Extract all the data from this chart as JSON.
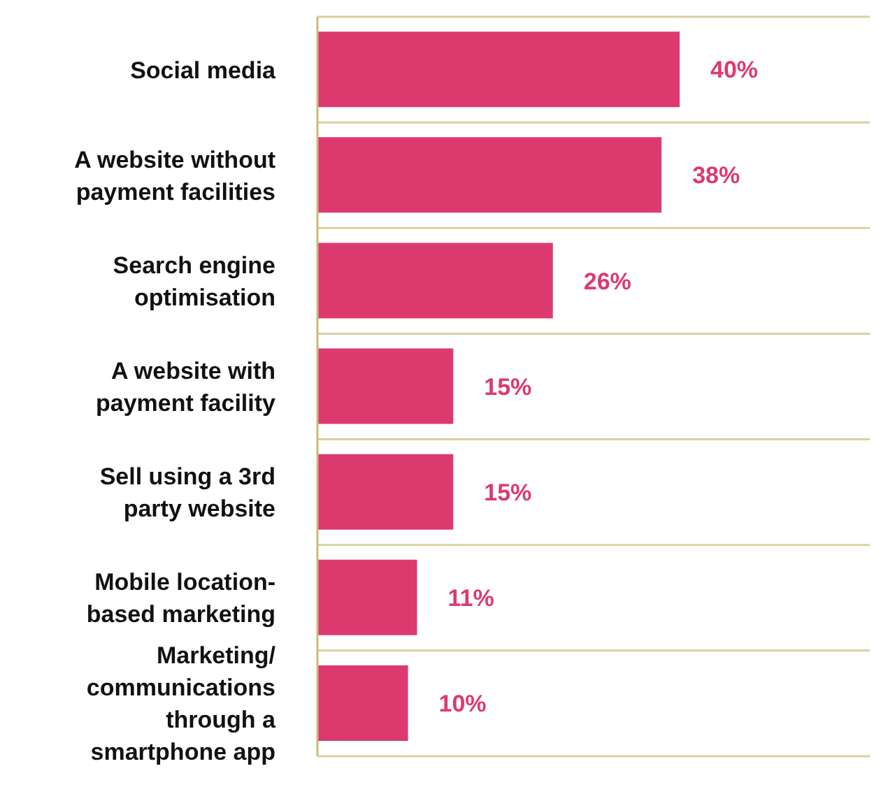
{
  "chart_data": {
    "type": "bar",
    "orientation": "horizontal",
    "categories": [
      "Social media",
      "A website without payment facilities",
      "Search engine optimisation",
      "A website with payment facility",
      "Sell using a 3rd party website",
      "Mobile location-based marketing",
      "Marketing/communications through a smartphone app"
    ],
    "values": [
      40,
      38,
      26,
      15,
      15,
      11,
      10
    ],
    "value_labels": [
      "40%",
      "38%",
      "26%",
      "15%",
      "15%",
      "11%",
      "10%"
    ],
    "color": "#dc3a6e",
    "xlim": [
      0,
      61
    ],
    "grid": "y",
    "tick_labels": "y"
  }
}
